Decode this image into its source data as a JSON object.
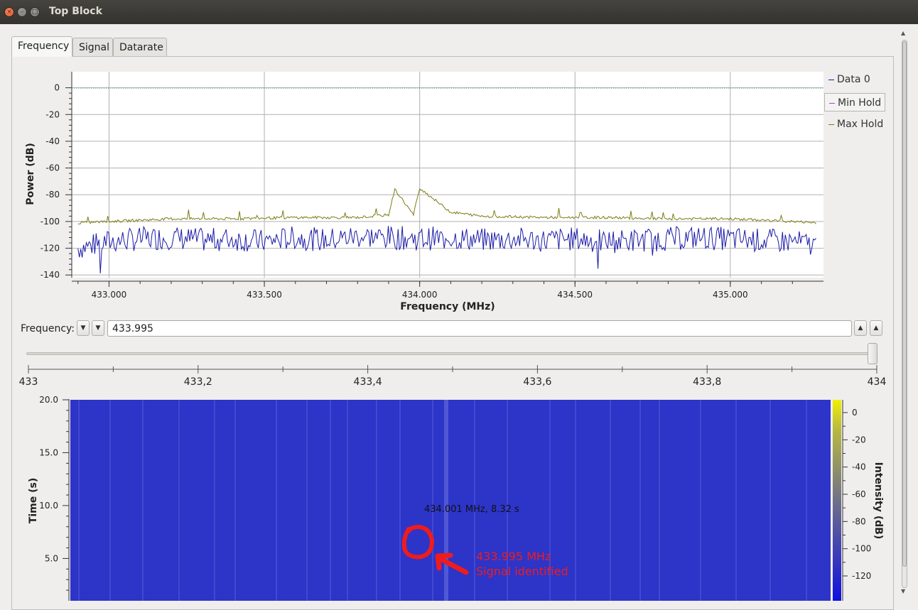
{
  "window": {
    "title": "Top Block"
  },
  "tabs": [
    {
      "label": "Frequency"
    },
    {
      "label": "Signal"
    },
    {
      "label": "Datarate"
    }
  ],
  "spectrum_plot": {
    "ylabel": "Power (dB)",
    "xlabel": "Frequency (MHz)",
    "ytick_labels": [
      "0",
      "-20",
      "-40",
      "-60",
      "-80",
      "-100",
      "-120",
      "-140"
    ],
    "xtick_labels": [
      "433.000",
      "433.500",
      "434.000",
      "434.500",
      "435.000"
    ],
    "legend": [
      "Data 0",
      "Min Hold",
      "Max Hold"
    ],
    "colors": {
      "data0": "#1a1aa8",
      "min_hold": "#c23cc2",
      "max_hold": "#7c7c14",
      "zero_line": "#1a8a8a"
    }
  },
  "frequency_control": {
    "label": "Frequency:",
    "value": "433.995",
    "slider_ticks": [
      "433",
      "433,2",
      "433,4",
      "433,6",
      "433,8",
      "434"
    ],
    "slider_position": 0.995
  },
  "waterfall_plot": {
    "ylabel": "Time (s)",
    "colorbar_label": "Intensity (dB)",
    "ytick_labels": [
      "20.0",
      "15.0",
      "10.0",
      "5.0"
    ],
    "colorbar_ticks": [
      "0",
      "-20",
      "-40",
      "-60",
      "-80",
      "-100",
      "-120"
    ],
    "marker_readout": "434.001 MHz, 8.32 s",
    "colors": {
      "background": "#2d34c8",
      "annotation": "#ee1c1c"
    }
  },
  "annotation": {
    "line1": "433.995 MHz",
    "line2": "Signal identified"
  },
  "chart_data": [
    {
      "type": "line",
      "xlabel": "Frequency (MHz)",
      "ylabel": "Power (dB)",
      "xlim": [
        432.88,
        435.3
      ],
      "ylim": [
        -142,
        12
      ],
      "grid": true,
      "legend_position": "right",
      "series": [
        {
          "name": "Data 0",
          "x": [
            432.9,
            433.0,
            433.1,
            433.2,
            433.3,
            433.4,
            433.5,
            433.6,
            433.7,
            433.8,
            433.9,
            434.0,
            434.1,
            434.2,
            434.3,
            434.4,
            434.5,
            434.6,
            434.7,
            434.8,
            434.9,
            435.0,
            435.1,
            435.2,
            435.28
          ],
          "y": [
            -120,
            -115,
            -113,
            -112,
            -114,
            -113,
            -115,
            -112,
            -114,
            -111,
            -112,
            -113,
            -112,
            -114,
            -113,
            -114,
            -113,
            -115,
            -114,
            -113,
            -112,
            -113,
            -114,
            -115,
            -118
          ]
        },
        {
          "name": "Min Hold",
          "x": [],
          "y": []
        },
        {
          "name": "Max Hold",
          "x": [
            432.9,
            433.0,
            433.2,
            433.4,
            433.6,
            433.8,
            433.9,
            433.92,
            433.98,
            434.0,
            434.1,
            434.2,
            434.4,
            434.6,
            434.8,
            435.0,
            435.2,
            435.28
          ],
          "y": [
            -101,
            -100,
            -98,
            -98,
            -97,
            -97,
            -95,
            -76,
            -95,
            -75,
            -93,
            -96,
            -97,
            -97,
            -98,
            -98,
            -100,
            -101
          ]
        }
      ]
    },
    {
      "type": "heatmap",
      "ylabel": "Time (s)",
      "yticks": [
        20.0,
        15.0,
        10.0,
        5.0
      ],
      "colorbar": {
        "label": "Intensity (dB)",
        "ticks": [
          0,
          -20,
          -40,
          -60,
          -80,
          -100,
          -120
        ]
      }
    }
  ]
}
